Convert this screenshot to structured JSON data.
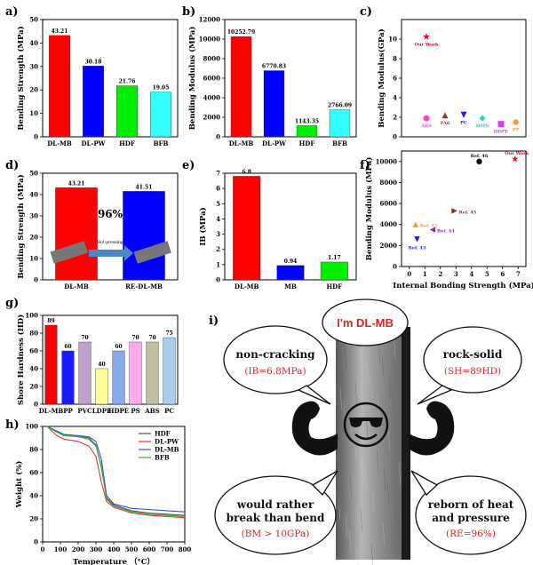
{
  "panels": {
    "a": {
      "label": "a)"
    },
    "b": {
      "label": "b)"
    },
    "c": {
      "label": "c)"
    },
    "d": {
      "label": "d)"
    },
    "e": {
      "label": "e)"
    },
    "f": {
      "label": "f)"
    },
    "g": {
      "label": "g)"
    },
    "h": {
      "label": "h)"
    },
    "i": {
      "label": "i)"
    }
  },
  "chart_data": [
    {
      "id": "a",
      "type": "bar",
      "ylabel": "Bending Strength (MPa)",
      "categories": [
        "DL-MB",
        "DL-PW",
        "HDF",
        "BFB"
      ],
      "values": [
        43.21,
        30.18,
        21.76,
        19.05
      ],
      "labels": [
        "43.21",
        "30.18",
        "21.76",
        "19.05"
      ],
      "colors": [
        "#ff0000",
        "#0000ff",
        "#00ee00",
        "#33ffff"
      ],
      "ylim": [
        0,
        50
      ],
      "yticks": [
        "0",
        "10",
        "20",
        "30",
        "40",
        "50"
      ]
    },
    {
      "id": "b",
      "type": "bar",
      "ylabel": "Bending Modulus (MPa)",
      "categories": [
        "DL-MB",
        "DL-PW",
        "HDF",
        "BFB"
      ],
      "values": [
        10252.79,
        6770.83,
        1143.35,
        2766.09
      ],
      "labels": [
        "10252.79",
        "6770.83",
        "1143.35",
        "2766.09"
      ],
      "colors": [
        "#ff0000",
        "#0000ff",
        "#00ee00",
        "#33ffff"
      ],
      "ylim": [
        0,
        12000
      ],
      "yticks": [
        "0",
        "2000",
        "4000",
        "6000",
        "8000",
        "10000",
        "12000"
      ]
    },
    {
      "id": "c",
      "type": "scatter",
      "ylabel": "Bending Modulus(GPa)",
      "ylim": [
        0,
        12
      ],
      "yticks": [
        "0",
        "2",
        "4",
        "6",
        "8",
        "10"
      ],
      "points": [
        {
          "label": "Our Work",
          "x": 1,
          "y": 10.25,
          "color": "#e0001a",
          "marker": "star"
        },
        {
          "label": "ABS",
          "x": 1,
          "y": 1.9,
          "color": "#ff44cc",
          "marker": "circle"
        },
        {
          "label": "PA6",
          "x": 2,
          "y": 2.2,
          "color": "#884422",
          "marker": "triangle-up"
        },
        {
          "label": "PC",
          "x": 3,
          "y": 2.25,
          "color": "#1a1aff",
          "marker": "triangle-down"
        },
        {
          "label": "HIPS",
          "x": 4,
          "y": 1.9,
          "color": "#22ccdd",
          "marker": "diamond"
        },
        {
          "label": "HDPE",
          "x": 5,
          "y": 1.3,
          "color": "#cc44ee",
          "marker": "square"
        },
        {
          "label": "PP",
          "x": 6,
          "y": 1.5,
          "color": "#ff9933",
          "marker": "hexagon"
        }
      ]
    },
    {
      "id": "d",
      "type": "bar",
      "ylabel": "Bending Strength (MPa)",
      "categories": [
        "DL-MB",
        "RE-DL-MB"
      ],
      "values": [
        43.21,
        41.51
      ],
      "labels": [
        "43.21",
        "41.51"
      ],
      "colors": [
        "#ff0000",
        "#0000ff"
      ],
      "ylim": [
        0,
        50
      ],
      "yticks": [
        "0",
        "10",
        "20",
        "30",
        "40",
        "50"
      ],
      "annotation": "96%",
      "arrow_label": "Hot-pressing"
    },
    {
      "id": "e",
      "type": "bar",
      "ylabel": "IB (MPa)",
      "categories": [
        "DL-MB",
        "MB",
        "HDF"
      ],
      "values": [
        6.8,
        0.94,
        1.17
      ],
      "labels": [
        "6.8",
        "0.94",
        "1.17"
      ],
      "colors": [
        "#ff0000",
        "#0000ff",
        "#00ee00"
      ],
      "ylim": [
        0,
        7
      ],
      "yticks": [
        "0",
        "1",
        "2",
        "3",
        "4",
        "5",
        "6",
        "7"
      ]
    },
    {
      "id": "f",
      "type": "scatter",
      "xlabel": "Internal Bonding Strength (MPa)",
      "ylabel": "Bending Modulus (MPa)",
      "xlim": [
        -0.5,
        7.5
      ],
      "ylim": [
        0,
        11000
      ],
      "xticks": [
        "0",
        "1",
        "2",
        "3",
        "4",
        "5",
        "6",
        "7"
      ],
      "yticks": [
        "0",
        "2000",
        "4000",
        "6000",
        "8000",
        "10000"
      ],
      "points": [
        {
          "label": "Our Work",
          "x": 6.8,
          "y": 10252,
          "color": "#e0001a",
          "marker": "star"
        },
        {
          "label": "Ref. 46",
          "x": 4.5,
          "y": 10000,
          "color": "#111111",
          "marker": "circle"
        },
        {
          "label": "Ref. 45",
          "x": 2.9,
          "y": 5300,
          "color": "#992222",
          "marker": "triangle-right"
        },
        {
          "label": "Ref. 42",
          "x": 0.4,
          "y": 4000,
          "color": "#ff9933",
          "marker": "triangle-up"
        },
        {
          "label": "Ref. 44",
          "x": 1.5,
          "y": 3500,
          "color": "#883399",
          "marker": "triangle-left"
        },
        {
          "label": "Ref. 43",
          "x": 0.5,
          "y": 2600,
          "color": "#1a1aff",
          "marker": "triangle-down"
        }
      ]
    },
    {
      "id": "g",
      "type": "bar",
      "ylabel": "Shore Hardness (HD)",
      "categories": [
        "DL-MB",
        "PP",
        "PVC",
        "LDPE",
        "HDPE",
        "PS",
        "ABS",
        "PC"
      ],
      "values": [
        89,
        60,
        70,
        40,
        60,
        70,
        70,
        75
      ],
      "labels": [
        "89",
        "60",
        "70",
        "40",
        "60",
        "70",
        "70",
        "75"
      ],
      "colors": [
        "#ff0000",
        "#1a1aff",
        "#c0a0cc",
        "#ffff99",
        "#88aaee",
        "#ffaaee",
        "#c0c0a0",
        "#aaccee"
      ],
      "ylim": [
        0,
        100
      ],
      "yticks": [
        "0",
        "20",
        "40",
        "60",
        "80",
        "100"
      ]
    },
    {
      "id": "h",
      "type": "line",
      "xlabel": "Temperature （°C）",
      "ylabel": "Weight (%)",
      "xlim": [
        0,
        800
      ],
      "ylim": [
        0,
        100
      ],
      "xticks": [
        "0",
        "100",
        "200",
        "300",
        "400",
        "500",
        "600",
        "700",
        "800"
      ],
      "yticks": [
        "0",
        "20",
        "40",
        "60",
        "80",
        "100"
      ],
      "series": [
        {
          "name": "HDF",
          "color": "#555555",
          "x": [
            25,
            80,
            120,
            200,
            260,
            300,
            330,
            360,
            400,
            500,
            600,
            700,
            800
          ],
          "y": [
            100,
            96,
            93,
            92,
            90,
            84,
            65,
            38,
            32,
            27,
            25,
            24,
            23
          ]
        },
        {
          "name": "DL-PW",
          "color": "#ee3333",
          "x": [
            25,
            80,
            120,
            200,
            260,
            300,
            330,
            360,
            400,
            500,
            600,
            700,
            800
          ],
          "y": [
            100,
            92,
            89,
            87,
            83,
            74,
            52,
            35,
            30,
            25,
            23,
            22,
            21
          ]
        },
        {
          "name": "DL-MB",
          "color": "#3355dd",
          "x": [
            25,
            80,
            120,
            200,
            260,
            300,
            330,
            360,
            400,
            500,
            600,
            700,
            800
          ],
          "y": [
            100,
            96,
            93,
            92,
            91,
            87,
            72,
            40,
            33,
            29,
            28,
            27,
            26
          ]
        },
        {
          "name": "BFB",
          "color": "#33aa33",
          "x": [
            25,
            80,
            120,
            200,
            260,
            300,
            330,
            360,
            400,
            500,
            600,
            700,
            800
          ],
          "y": [
            100,
            95,
            92,
            91,
            89,
            83,
            66,
            37,
            31,
            26,
            24,
            23,
            22
          ]
        }
      ]
    }
  ],
  "illustration": {
    "bubbles": [
      {
        "title": "I'm DL-MB",
        "sub": ""
      },
      {
        "title": "non-cracking",
        "sub": "(IB=6.8MPa)"
      },
      {
        "title": "rock-solid",
        "sub": "(SH=89HD)"
      },
      {
        "title": "would rather",
        "title2": "break than bend",
        "sub": "(BM > 10GPa)"
      },
      {
        "title": "reborn of heat",
        "title2": "and pressure",
        "sub": "(RE=96%)"
      }
    ]
  }
}
